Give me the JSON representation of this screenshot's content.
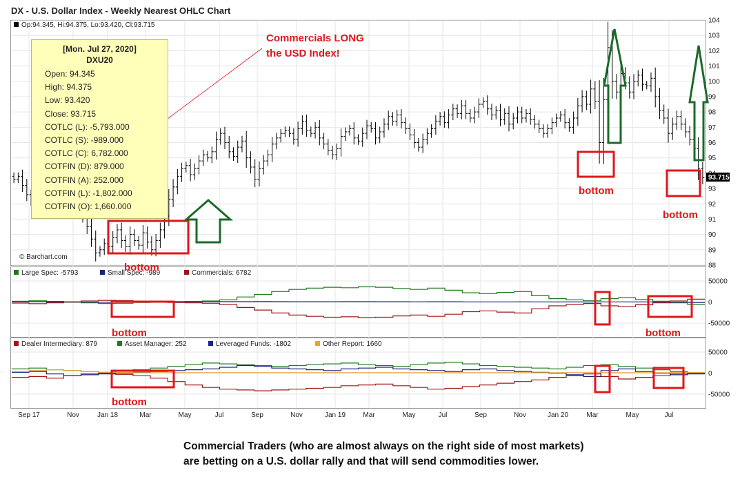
{
  "title": "DX - U.S. Dollar Index - Weekly Nearest OHLC Chart",
  "ohlc_readout": "Op:94.345, Hi:94.375, Lo:93.420, Cl:93.715",
  "last_price_label": "93.715",
  "watermark": "© Barchart.com",
  "tooltip": {
    "date": "[Mon. Jul 27, 2020]",
    "symbol": "DXU20",
    "rows": [
      "Open: 94.345",
      "High: 94.375",
      "Low: 93.420",
      "Close: 93.715",
      "COTLC (L): -5,793.000",
      "COTLC (S): -989.000",
      "COTLC (C): 6,782.000",
      "COTFIN (D): 879.000",
      "COTFIN (A): 252.000",
      "COTFIN (L): -1,802.000",
      "COTFIN (O): 1,660.000"
    ]
  },
  "annotations": {
    "headline_1": "Commercials LONG",
    "headline_2": "the USD Index!",
    "bottom_label": "bottom"
  },
  "caption": "Commercial Traders (who are almost always on the right side of most markets) are betting on a U.S. dollar rally and that will send commodities lower.",
  "colors": {
    "price": "#000000",
    "large_spec": "#1f7a1f",
    "small_spec": "#1a237e",
    "commercials": "#a31515",
    "dealer": "#a31515",
    "asset_manager": "#1f7a1f",
    "leveraged": "#1a237e",
    "other": "#e8a33c",
    "highlight": "#e0161b",
    "arrow": "#1a6b2a"
  },
  "chart_data": [
    {
      "type": "ohlc",
      "title": "DX - U.S. Dollar Index - Weekly Nearest OHLC Chart",
      "x_tick_labels": [
        "Sep 17",
        "Nov",
        "Jan 18",
        "Mar",
        "May",
        "Jul",
        "Sep",
        "Nov",
        "Jan 19",
        "Mar",
        "May",
        "Jul",
        "Sep",
        "Nov",
        "Jan 20",
        "Mar",
        "May",
        "Jul"
      ],
      "y_ticks": [
        88,
        89,
        90,
        91,
        92,
        93,
        94,
        95,
        96,
        97,
        98,
        99,
        100,
        101,
        102,
        103,
        104
      ],
      "ylim": [
        88,
        104
      ],
      "close_series": [
        93.6,
        93.8,
        93.2,
        92.6,
        92.2,
        91.6,
        92.1,
        93.0,
        94.4,
        94.0,
        94.6,
        93.5,
        93.1,
        92.6,
        92.2,
        91.8,
        91.2,
        90.5,
        89.7,
        88.8,
        89.0,
        89.4,
        89.2,
        89.8,
        90.3,
        89.6,
        89.2,
        90.0,
        89.6,
        89.3,
        90.1,
        89.5,
        89.0,
        89.6,
        90.3,
        91.2,
        92.3,
        93.1,
        93.8,
        94.3,
        94.5,
        93.9,
        94.3,
        94.8,
        95.2,
        95.0,
        95.4,
        96.2,
        96.6,
        96.0,
        95.4,
        95.1,
        95.7,
        96.1,
        95.0,
        94.4,
        93.6,
        94.3,
        94.8,
        95.2,
        95.9,
        96.3,
        96.6,
        96.8,
        96.6,
        96.2,
        96.9,
        97.4,
        96.8,
        96.6,
        97.0,
        96.3,
        95.9,
        95.5,
        95.2,
        95.6,
        96.4,
        96.7,
        96.9,
        96.3,
        96.1,
        96.6,
        97.1,
        96.9,
        96.3,
        96.7,
        97.2,
        97.7,
        97.4,
        97.8,
        97.3,
        96.9,
        96.5,
        96.0,
        95.7,
        96.2,
        96.6,
        96.9,
        97.4,
        97.7,
        97.3,
        97.8,
        98.2,
        97.9,
        98.4,
        97.9,
        97.6,
        98.0,
        98.5,
        98.7,
        98.2,
        97.8,
        98.1,
        97.5,
        97.9,
        97.2,
        97.6,
        98.0,
        97.6,
        97.9,
        97.5,
        97.2,
        96.9,
        96.6,
        96.9,
        97.3,
        97.6,
        97.8,
        97.3,
        97.0,
        97.6,
        98.4,
        99.0,
        98.5,
        99.5,
        98.7,
        96.0,
        98.8,
        102.2,
        100.0,
        99.3,
        100.5,
        99.9,
        99.3,
        100.0,
        100.4,
        99.8,
        99.7,
        100.2,
        99.0,
        98.1,
        97.6,
        96.6,
        97.2,
        97.7,
        97.2,
        96.7,
        96.2,
        95.6,
        94.3,
        93.7
      ],
      "last_close": 93.715
    },
    {
      "type": "line",
      "title": "",
      "series": [
        {
          "name": "Large Spec: -5793",
          "values": [
            2000,
            3000,
            1500,
            -500,
            -2000,
            -3500,
            -3000,
            -1000,
            0,
            1000,
            1500,
            2500,
            5000,
            12000,
            18000,
            25000,
            30000,
            33000,
            35000,
            34000,
            36000,
            35000,
            32000,
            30000,
            33000,
            28000,
            22000,
            20000,
            23000,
            25000,
            15000,
            8000,
            5000,
            3000,
            8000,
            10000,
            6000,
            2000,
            -2000,
            -5793
          ]
        },
        {
          "name": "Small Spec: -989",
          "values": [
            500,
            800,
            300,
            0,
            -400,
            -600,
            -500,
            -200,
            0,
            200,
            300,
            500,
            800,
            900,
            1000,
            800,
            700,
            600,
            700,
            800,
            900,
            700,
            600,
            500,
            700,
            600,
            400,
            300,
            400,
            500,
            300,
            200,
            100,
            0,
            300,
            400,
            200,
            0,
            -500,
            -989
          ]
        },
        {
          "name": "Commercials: 6782",
          "values": [
            -2500,
            -4000,
            -1800,
            500,
            2500,
            4000,
            3500,
            1200,
            0,
            -1200,
            -2000,
            -3000,
            -6000,
            -13000,
            -19000,
            -26000,
            -31000,
            -34000,
            -36000,
            -35000,
            -37000,
            -36000,
            -33000,
            -31000,
            -34000,
            -29000,
            -23000,
            -21000,
            -24000,
            -26000,
            -16000,
            -9000,
            -6000,
            -3500,
            -9000,
            -11000,
            -6500,
            -2000,
            2500,
            6782
          ]
        }
      ],
      "y_ticks": [
        50000,
        0,
        -50000
      ],
      "ylim": [
        -50000,
        50000
      ]
    },
    {
      "type": "line",
      "title": "",
      "series": [
        {
          "name": "Dealer Intermediary: 879",
          "values": [
            -10000,
            -8000,
            -12000,
            -6000,
            -2000,
            0,
            -3000,
            -6000,
            -12000,
            -20000,
            -28000,
            -34000,
            -38000,
            -40000,
            -42000,
            -40000,
            -38000,
            -36000,
            -34000,
            -30000,
            -28000,
            -26000,
            -30000,
            -34000,
            -38000,
            -36000,
            -32000,
            -28000,
            -24000,
            -20000,
            -16000,
            -10000,
            -6000,
            -2000,
            -8000,
            -14000,
            -10000,
            -6000,
            -2000,
            879
          ]
        },
        {
          "name": "Asset Manager: 252",
          "values": [
            10000,
            12000,
            8000,
            6000,
            4000,
            2000,
            5000,
            8000,
            12000,
            16000,
            20000,
            24000,
            22000,
            20000,
            18000,
            16000,
            18000,
            20000,
            22000,
            24000,
            20000,
            18000,
            16000,
            20000,
            24000,
            26000,
            22000,
            18000,
            16000,
            14000,
            12000,
            10000,
            14000,
            18000,
            20000,
            16000,
            12000,
            8000,
            4000,
            252
          ]
        },
        {
          "name": "Leveraged Funds: -1802",
          "values": [
            2000,
            4000,
            -2000,
            -6000,
            -4000,
            -2000,
            0,
            2000,
            4000,
            6000,
            8000,
            10000,
            14000,
            18000,
            16000,
            12000,
            10000,
            8000,
            6000,
            10000,
            12000,
            14000,
            10000,
            8000,
            6000,
            4000,
            8000,
            10000,
            6000,
            4000,
            2000,
            0,
            -4000,
            -8000,
            6000,
            10000,
            4000,
            0,
            -4000,
            -1802
          ]
        },
        {
          "name": "Other Report: 1660",
          "values": [
            4000,
            6000,
            8000,
            6000,
            4000,
            2000,
            1500,
            1000,
            1000,
            1000,
            1000,
            1000,
            1000,
            1000,
            1000,
            1000,
            1000,
            1000,
            1000,
            1000,
            1000,
            1000,
            1000,
            1000,
            1000,
            1000,
            1000,
            1000,
            1000,
            1000,
            1000,
            1000,
            1000,
            1000,
            1000,
            1000,
            1000,
            1000,
            1500,
            1660
          ]
        }
      ],
      "y_ticks": [
        50000,
        0,
        -50000
      ],
      "ylim": [
        -50000,
        50000
      ]
    }
  ]
}
